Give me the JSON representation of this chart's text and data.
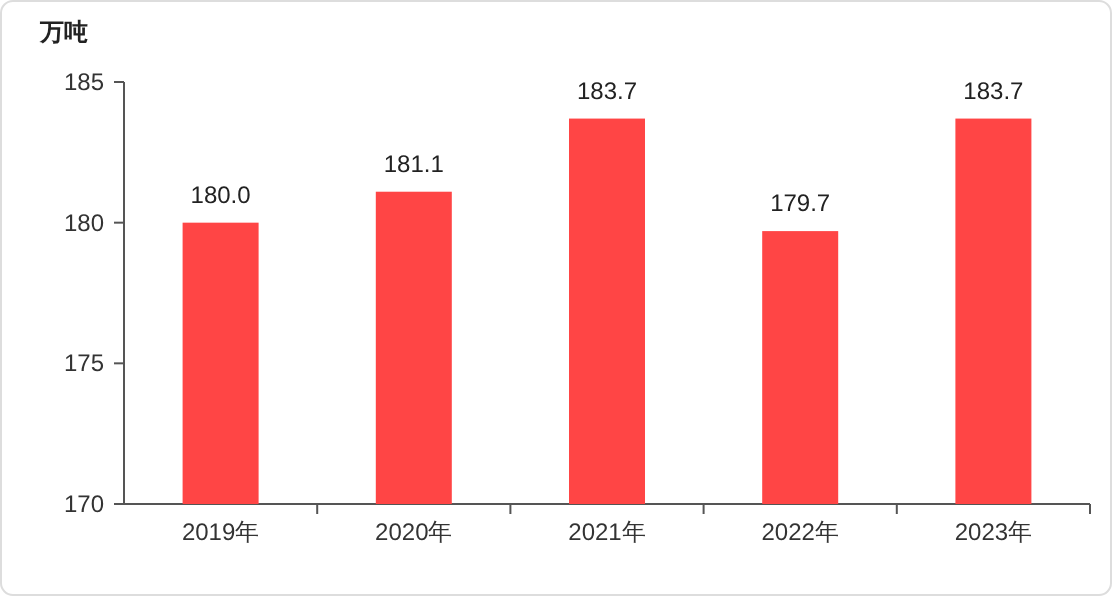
{
  "chart_data": {
    "type": "bar",
    "ylabel": "万吨",
    "categories": [
      "2019年",
      "2020年",
      "2021年",
      "2022年",
      "2023年"
    ],
    "values": [
      180.0,
      181.1,
      183.7,
      179.7,
      183.7
    ],
    "value_labels": [
      "180.0",
      "181.1",
      "183.7",
      "179.7",
      "183.7"
    ],
    "color": "#ff4545",
    "ylim": [
      170,
      185
    ],
    "yticks": [
      170,
      175,
      180,
      185
    ]
  }
}
